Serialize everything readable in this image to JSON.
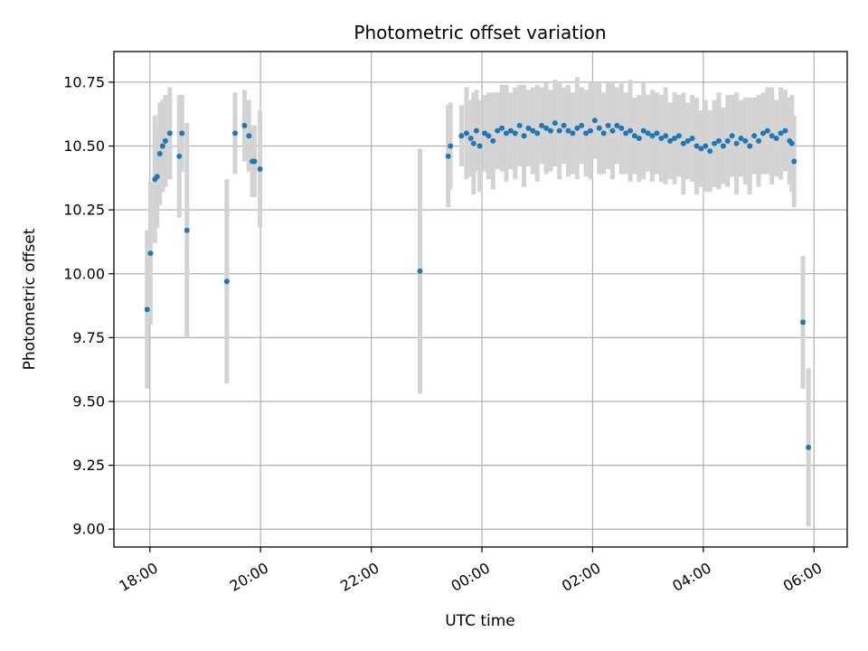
{
  "chart_data": {
    "type": "scatter",
    "title": "Photometric offset variation",
    "xlabel": "UTC time",
    "ylabel": "Photometric offset",
    "grid": true,
    "x_unit": "hours since 18:00 UTC",
    "xlim": [
      -0.65,
      12.6
    ],
    "ylim": [
      8.93,
      10.87
    ],
    "xticks": [
      {
        "value": 0,
        "label": "18:00"
      },
      {
        "value": 2,
        "label": "20:00"
      },
      {
        "value": 4,
        "label": "22:00"
      },
      {
        "value": 6,
        "label": "00:00"
      },
      {
        "value": 8,
        "label": "02:00"
      },
      {
        "value": 10,
        "label": "04:00"
      },
      {
        "value": 12,
        "label": "06:00"
      }
    ],
    "yticks": [
      {
        "value": 9.0,
        "label": "9.00"
      },
      {
        "value": 9.25,
        "label": "9.25"
      },
      {
        "value": 9.5,
        "label": "9.50"
      },
      {
        "value": 9.75,
        "label": "9.75"
      },
      {
        "value": 10.0,
        "label": "10.00"
      },
      {
        "value": 10.25,
        "label": "10.25"
      },
      {
        "value": 10.5,
        "label": "10.50"
      },
      {
        "value": 10.75,
        "label": "10.75"
      }
    ],
    "point_color": "#1f77b4",
    "errorbar_color": "#d3d3d3",
    "series": [
      {
        "name": "offset",
        "x": [
          -0.05,
          0.01,
          0.09,
          0.13,
          0.18,
          0.23,
          0.28,
          0.36,
          0.53,
          0.58,
          0.67,
          1.39,
          1.54,
          1.71,
          1.79,
          1.85,
          1.89,
          1.99,
          4.88,
          5.39,
          5.43,
          5.63,
          5.72,
          5.8,
          5.85,
          5.9,
          5.96,
          6.05,
          6.12,
          6.2,
          6.28,
          6.36,
          6.44,
          6.52,
          6.6,
          6.68,
          6.76,
          6.84,
          6.92,
          7.0,
          7.08,
          7.16,
          7.24,
          7.32,
          7.4,
          7.48,
          7.56,
          7.64,
          7.72,
          7.8,
          7.88,
          7.96,
          8.04,
          8.12,
          8.2,
          8.28,
          8.36,
          8.44,
          8.52,
          8.6,
          8.68,
          8.76,
          8.84,
          8.92,
          9.0,
          9.08,
          9.16,
          9.24,
          9.32,
          9.4,
          9.48,
          9.56,
          9.64,
          9.72,
          9.8,
          9.88,
          9.96,
          10.04,
          10.12,
          10.2,
          10.28,
          10.36,
          10.44,
          10.52,
          10.6,
          10.68,
          10.76,
          10.84,
          10.92,
          11.0,
          11.08,
          11.16,
          11.24,
          11.32,
          11.4,
          11.48,
          11.56,
          11.6,
          11.64,
          11.8,
          11.9
        ],
        "y": [
          9.86,
          10.08,
          10.37,
          10.38,
          10.47,
          10.5,
          10.52,
          10.55,
          10.46,
          10.55,
          10.17,
          9.97,
          10.55,
          10.58,
          10.54,
          10.44,
          10.44,
          10.41,
          10.01,
          10.46,
          10.5,
          10.54,
          10.55,
          10.53,
          10.51,
          10.56,
          10.5,
          10.55,
          10.54,
          10.52,
          10.56,
          10.57,
          10.55,
          10.56,
          10.55,
          10.58,
          10.54,
          10.57,
          10.56,
          10.55,
          10.58,
          10.57,
          10.56,
          10.59,
          10.56,
          10.58,
          10.56,
          10.55,
          10.57,
          10.58,
          10.55,
          10.56,
          10.6,
          10.57,
          10.55,
          10.58,
          10.56,
          10.58,
          10.57,
          10.55,
          10.56,
          10.54,
          10.53,
          10.56,
          10.55,
          10.54,
          10.55,
          10.53,
          10.54,
          10.52,
          10.53,
          10.54,
          10.51,
          10.52,
          10.53,
          10.5,
          10.49,
          10.5,
          10.48,
          10.51,
          10.52,
          10.5,
          10.52,
          10.54,
          10.51,
          10.53,
          10.52,
          10.5,
          10.54,
          10.52,
          10.55,
          10.56,
          10.54,
          10.53,
          10.55,
          10.56,
          10.52,
          10.51,
          10.44,
          9.81,
          9.32
        ],
        "err": [
          0.31,
          0.28,
          0.25,
          0.2,
          0.2,
          0.18,
          0.18,
          0.18,
          0.24,
          0.15,
          0.42,
          0.4,
          0.16,
          0.14,
          0.14,
          0.14,
          0.14,
          0.23,
          0.48,
          0.2,
          0.17,
          0.12,
          0.18,
          0.15,
          0.2,
          0.16,
          0.18,
          0.15,
          0.17,
          0.19,
          0.15,
          0.17,
          0.19,
          0.15,
          0.18,
          0.16,
          0.2,
          0.15,
          0.17,
          0.19,
          0.15,
          0.18,
          0.16,
          0.17,
          0.19,
          0.15,
          0.18,
          0.16,
          0.2,
          0.15,
          0.17,
          0.19,
          0.15,
          0.18,
          0.16,
          0.17,
          0.19,
          0.15,
          0.18,
          0.16,
          0.2,
          0.15,
          0.17,
          0.19,
          0.15,
          0.18,
          0.16,
          0.17,
          0.19,
          0.15,
          0.18,
          0.16,
          0.2,
          0.15,
          0.17,
          0.19,
          0.15,
          0.18,
          0.16,
          0.17,
          0.19,
          0.15,
          0.18,
          0.16,
          0.2,
          0.15,
          0.17,
          0.19,
          0.15,
          0.18,
          0.16,
          0.17,
          0.19,
          0.15,
          0.18,
          0.16,
          0.17,
          0.19,
          0.18,
          0.26,
          0.31
        ]
      }
    ]
  }
}
